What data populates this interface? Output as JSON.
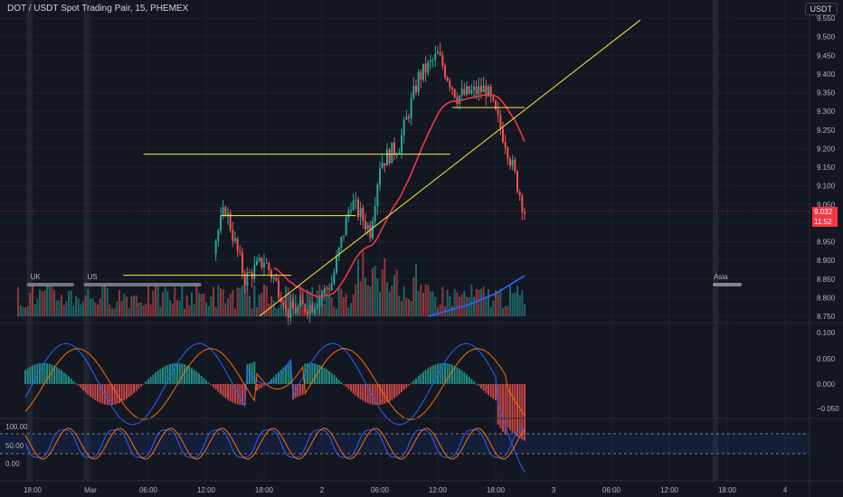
{
  "header": {
    "symbol_title": "DOT / USDT Spot Trading Pair, 15, PHEMEX",
    "currency": "USDT"
  },
  "colors": {
    "background": "#131722",
    "grid": "#1e222d",
    "bull": "#26a69a",
    "bear": "#ef5350",
    "trendline": "#ffeb3b",
    "ma_red": "#f23645",
    "ma_blue": "#2962ff",
    "session_bar": "#b2b5be"
  },
  "price_axis": {
    "ticks": [
      "9.550",
      "9.500",
      "9.450",
      "9.400",
      "9.350",
      "9.300",
      "9.250",
      "9.200",
      "9.150",
      "9.100",
      "9.050",
      "9.000",
      "8.950",
      "8.900",
      "8.850",
      "8.800",
      "8.750"
    ],
    "current_price": "9.032",
    "countdown": "11:52"
  },
  "macd_axis": {
    "ticks": [
      "0.100",
      "0.050",
      "0.000",
      "−0.050"
    ]
  },
  "stoch_axis": {
    "ticks": [
      "100.00",
      "50.00",
      "0.00"
    ]
  },
  "time_axis": {
    "ticks": [
      "18:00",
      "Mar",
      "06:00",
      "12:00",
      "18:00",
      "2",
      "06:00",
      "12:00",
      "18:00",
      "3",
      "06:00",
      "12:00",
      "18:00",
      "4"
    ]
  },
  "sessions": [
    "UK",
    "US",
    "Asia"
  ],
  "chart_data": {
    "type": "candlestick",
    "symbol": "DOT / USDT",
    "interval": "15",
    "exchange": "PHEMEX",
    "ylim": [
      8.75,
      9.55
    ],
    "current_price": 9.032,
    "horizontal_levels": [
      9.31,
      9.185,
      9.02,
      8.86
    ],
    "close_path_approx": [
      {
        "t": "Mar 1 20:00",
        "price": 8.76
      },
      {
        "t": "Mar 1 23:00",
        "price": 8.78
      },
      {
        "t": "Mar 2 01:00",
        "price": 8.84
      },
      {
        "t": "Mar 2 03:00",
        "price": 9.06
      },
      {
        "t": "Mar 2 06:00",
        "price": 9.16
      },
      {
        "t": "Mar 2 08:00",
        "price": 9.21
      },
      {
        "t": "Mar 2 10:00",
        "price": 9.39
      },
      {
        "t": "Mar 2 12:00",
        "price": 9.45
      },
      {
        "t": "Mar 2 14:00",
        "price": 9.34
      },
      {
        "t": "Mar 2 17:00",
        "price": 9.36
      },
      {
        "t": "Mar 2 19:00",
        "price": 9.22
      },
      {
        "t": "Mar 2 21:00",
        "price": 9.032
      }
    ]
  }
}
